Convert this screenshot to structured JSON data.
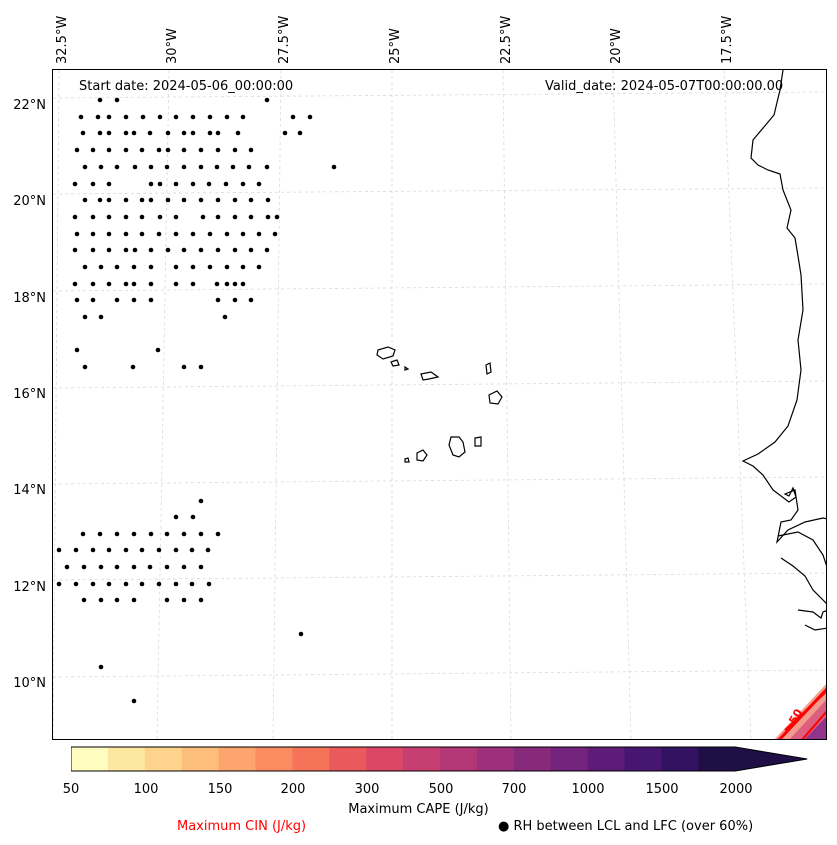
{
  "header": {
    "start_date": "Start date: 2024-05-06_00:00:00",
    "valid_date": "Valid_date: 2024-05-07T00:00:00.00"
  },
  "axes": {
    "longitude_labels": [
      "32.5°W",
      "30°W",
      "27.5°W",
      "25°W",
      "22.5°W",
      "20°W",
      "17.5°W"
    ],
    "latitude_labels": [
      "22°N",
      "20°N",
      "18°N",
      "16°N",
      "14°N",
      "12°N",
      "10°N"
    ]
  },
  "colorbar": {
    "label": "Maximum CAPE (J/kg)",
    "ticks": [
      "50",
      "100",
      "150",
      "200",
      "300",
      "500",
      "700",
      "1000",
      "1500",
      "2000"
    ],
    "colors": [
      "#fffdbf",
      "#fee7a0",
      "#fed38c",
      "#fdbd7b",
      "#fca56e",
      "#fb8c61",
      "#f57359",
      "#ea5a5d",
      "#db4867",
      "#c73e70",
      "#b33777",
      "#9d307b",
      "#882a7c",
      "#73237c",
      "#5e1c78",
      "#471670",
      "#331262",
      "#1f0f46"
    ],
    "extend": "max"
  },
  "legend": {
    "cin_label": "Maximum CIN (J/kg)",
    "cin_color": "#ff0000",
    "rh_label": "RH between LCL and LFC (over 60%)",
    "rh_marker": "●"
  },
  "map_annotations": {
    "cin_contour_label": "50"
  }
}
